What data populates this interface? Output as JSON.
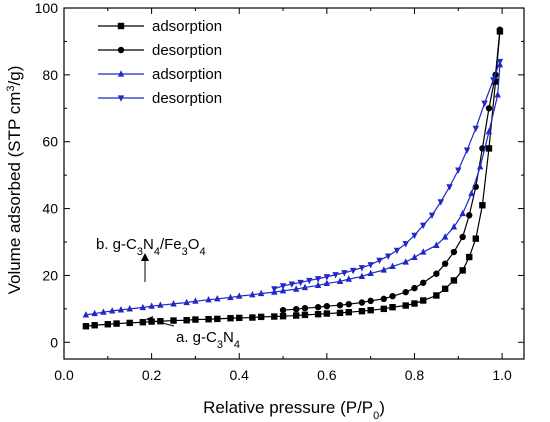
{
  "chart_data": {
    "type": "line",
    "xlabel": "Relative pressure (P/P0)",
    "ylabel": "Volume adsorbed (STP cm3/g)",
    "xlim": [
      0.0,
      1.05
    ],
    "ylim": [
      -5,
      100
    ],
    "x_ticks": [
      "0.0",
      "0.2",
      "0.4",
      "0.6",
      "0.8",
      "1.0"
    ],
    "y_ticks": [
      "0",
      "20",
      "40",
      "60",
      "80",
      "100"
    ],
    "grid": false,
    "legend_position": "top-left",
    "series": [
      {
        "name": "adsorption",
        "color": "#000000",
        "marker": "square",
        "x": [
          0.05,
          0.07,
          0.1,
          0.12,
          0.15,
          0.18,
          0.2,
          0.22,
          0.25,
          0.28,
          0.3,
          0.33,
          0.35,
          0.38,
          0.4,
          0.43,
          0.45,
          0.48,
          0.5,
          0.53,
          0.55,
          0.58,
          0.6,
          0.63,
          0.65,
          0.68,
          0.7,
          0.73,
          0.75,
          0.78,
          0.8,
          0.82,
          0.85,
          0.87,
          0.89,
          0.91,
          0.925,
          0.94,
          0.955,
          0.97,
          0.985,
          0.995
        ],
        "y": [
          4.8,
          5.1,
          5.4,
          5.6,
          5.8,
          6.0,
          6.2,
          6.3,
          6.5,
          6.6,
          6.8,
          6.9,
          7.0,
          7.2,
          7.3,
          7.4,
          7.6,
          7.7,
          7.8,
          8.0,
          8.2,
          8.4,
          8.6,
          8.8,
          9.0,
          9.3,
          9.6,
          10.0,
          10.5,
          11.0,
          11.6,
          12.5,
          14.0,
          16.0,
          18.5,
          21.5,
          25.5,
          31.0,
          41.0,
          58.0,
          78.0,
          93.0
        ]
      },
      {
        "name": "desorption",
        "color": "#000000",
        "marker": "circle",
        "x": [
          0.995,
          0.985,
          0.97,
          0.955,
          0.94,
          0.925,
          0.91,
          0.89,
          0.87,
          0.85,
          0.82,
          0.8,
          0.78,
          0.75,
          0.73,
          0.7,
          0.68,
          0.65,
          0.63,
          0.6,
          0.58,
          0.55,
          0.53,
          0.5
        ],
        "y": [
          93.5,
          80.0,
          70.0,
          58.0,
          46.5,
          38.0,
          31.5,
          27.0,
          23.5,
          20.5,
          17.8,
          16.2,
          15.0,
          13.8,
          13.0,
          12.4,
          11.9,
          11.4,
          11.1,
          10.8,
          10.5,
          10.2,
          9.9,
          9.6
        ]
      },
      {
        "name": "adsorption",
        "color": "#1f28c8",
        "marker": "triangle-up",
        "x": [
          0.05,
          0.07,
          0.09,
          0.11,
          0.13,
          0.15,
          0.18,
          0.2,
          0.22,
          0.25,
          0.28,
          0.3,
          0.33,
          0.35,
          0.38,
          0.4,
          0.43,
          0.45,
          0.48,
          0.5,
          0.53,
          0.55,
          0.58,
          0.6,
          0.63,
          0.65,
          0.68,
          0.7,
          0.73,
          0.75,
          0.78,
          0.8,
          0.82,
          0.85,
          0.87,
          0.89,
          0.91,
          0.93,
          0.95,
          0.97,
          0.99,
          0.995
        ],
        "y": [
          8.2,
          8.6,
          9.0,
          9.4,
          9.7,
          10.0,
          10.4,
          10.8,
          11.1,
          11.5,
          11.9,
          12.3,
          12.7,
          13.0,
          13.4,
          13.8,
          14.2,
          14.6,
          15.0,
          15.4,
          15.9,
          16.4,
          17.0,
          17.6,
          18.2,
          18.9,
          19.7,
          20.6,
          21.6,
          22.7,
          24.0,
          25.4,
          27.0,
          29.0,
          31.5,
          34.5,
          38.5,
          44.5,
          52.5,
          63.0,
          74.0,
          83.0
        ]
      },
      {
        "name": "desorption",
        "color": "#1f28c8",
        "marker": "triangle-down",
        "x": [
          0.995,
          0.98,
          0.96,
          0.94,
          0.92,
          0.9,
          0.88,
          0.86,
          0.84,
          0.82,
          0.8,
          0.78,
          0.76,
          0.74,
          0.72,
          0.7,
          0.68,
          0.66,
          0.64,
          0.62,
          0.6,
          0.58,
          0.56,
          0.54,
          0.52,
          0.5,
          0.48
        ],
        "y": [
          84.0,
          78.5,
          71.5,
          64.0,
          57.5,
          51.5,
          46.5,
          42.0,
          38.0,
          35.0,
          32.0,
          29.5,
          27.5,
          25.8,
          24.5,
          23.2,
          22.3,
          21.5,
          20.8,
          20.2,
          19.6,
          19.0,
          18.5,
          17.9,
          17.4,
          16.9,
          16.0
        ]
      }
    ],
    "annotations": [
      {
        "name": "annotation-a",
        "label": "a. g-C3N4",
        "prefix": "a. g-C",
        "sub1": "3",
        "mid": "N",
        "sub2": "4",
        "tail": ""
      },
      {
        "name": "annotation-b",
        "label": "b. g-C3N4/Fe3O4",
        "prefix": "b. g-C",
        "sub1": "3",
        "mid": "N",
        "sub2": "4",
        "tail": "/Fe",
        "sub3": "3",
        "tail2": "O",
        "sub4": "4"
      }
    ]
  }
}
